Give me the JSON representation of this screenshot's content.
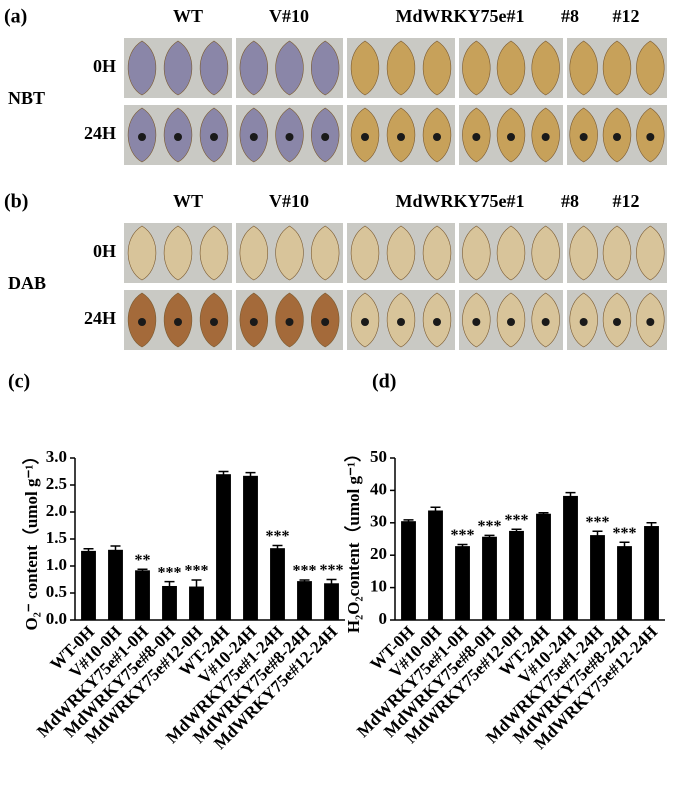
{
  "panels": [
    {
      "label": "(a)",
      "stain": "NBT",
      "groups": [
        "WT",
        "V#10",
        "MdWRKY75e#1",
        "#8",
        "#12"
      ],
      "rows": [
        "0H",
        "24H"
      ]
    },
    {
      "label": "(b)",
      "stain": "DAB",
      "groups": [
        "WT",
        "V#10",
        "MdWRKY75e#1",
        "#8",
        "#12"
      ],
      "rows": [
        "0H",
        "24H"
      ]
    }
  ],
  "chart_data": [
    {
      "type": "bar",
      "label": "(c)",
      "ylabel": "O₂⁻ content（umol g⁻¹）",
      "categories": [
        "WT-0H",
        "V#10-0H",
        "MdWRKY75e#1-0H",
        "MdWRKY75e#8-0H",
        "MdWRKY75e#12-0H",
        "WT-24H",
        "V#10-24H",
        "MdWRKY75e#1-24H",
        "MdWRKY75e#8-24H",
        "MdWRKY75e#12-24H"
      ],
      "series": [
        {
          "color": "#000000",
          "values": [
            1.28,
            1.3,
            0.92,
            0.63,
            0.62,
            2.7,
            2.67,
            1.33,
            0.72,
            0.68
          ],
          "errors": [
            0.04,
            0.07,
            0.02,
            0.08,
            0.12,
            0.05,
            0.06,
            0.05,
            0.02,
            0.07
          ]
        }
      ],
      "annotations": [
        null,
        null,
        "**",
        "***",
        "***",
        null,
        null,
        "***",
        "***",
        "***"
      ],
      "ylim": [
        0,
        3
      ],
      "yticks": [
        {
          "value": 0,
          "label": "0.0"
        },
        0.5,
        {
          "value": 1,
          "label": "1.0"
        },
        1.5,
        {
          "value": 2,
          "label": "2.0"
        },
        2.5,
        {
          "value": 3,
          "label": "3.0"
        }
      ]
    },
    {
      "type": "bar",
      "label": "(d)",
      "ylabel": "H₂O₂content（umol g⁻¹）",
      "categories": [
        "WT-0H",
        "V#10-0H",
        "MdWRKY75e#1-0H",
        "MdWRKY75e#8-0H",
        "MdWRKY75e#12-0H",
        "WT-24H",
        "V#10-24H",
        "MdWRKY75e#1-24H",
        "MdWRKY75e#8-24H",
        "MdWRKY75e#12-24H"
      ],
      "series": [
        {
          "color": "#000000",
          "values": [
            30.5,
            33.8,
            22.8,
            25.7,
            27.5,
            32.8,
            38.3,
            26.2,
            22.8,
            29.0
          ],
          "errors": [
            0.4,
            1,
            0.5,
            0.4,
            0.5,
            0.3,
            1,
            1.2,
            1.2,
            1
          ]
        }
      ],
      "annotations": [
        null,
        null,
        "***",
        "***",
        "***",
        null,
        null,
        "***",
        "***",
        null
      ],
      "ylim": [
        0,
        50
      ],
      "yticks": [
        0,
        10,
        20,
        30,
        40,
        50
      ]
    }
  ]
}
